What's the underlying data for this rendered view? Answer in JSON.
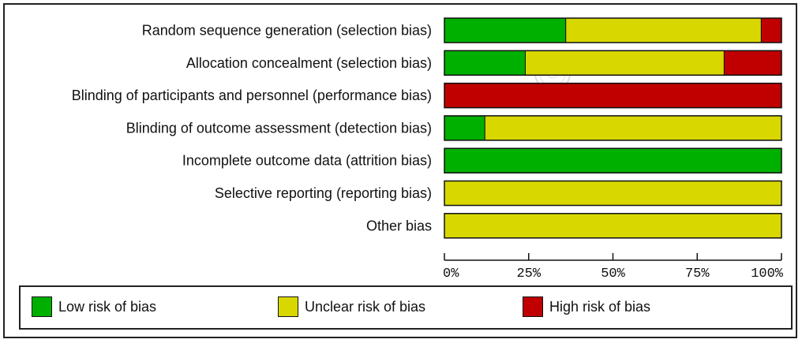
{
  "chart_data": {
    "type": "bar",
    "orientation": "horizontal",
    "stacked": true,
    "categories": [
      "Random sequence generation (selection bias)",
      "Allocation concealment (selection bias)",
      "Blinding of participants and personnel (performance bias)",
      "Blinding of outcome assessment (detection bias)",
      "Incomplete outcome data (attrition bias)",
      "Selective reporting (reporting bias)",
      "Other bias"
    ],
    "series": [
      {
        "name": "Low risk of bias",
        "color": "#00b000",
        "values": [
          36,
          24,
          0,
          12,
          100,
          0,
          0
        ]
      },
      {
        "name": "Unclear risk of bias",
        "color": "#d8d800",
        "values": [
          58,
          59,
          0,
          88,
          0,
          100,
          100
        ]
      },
      {
        "name": "High risk of bias",
        "color": "#c00000",
        "values": [
          6,
          17,
          100,
          0,
          0,
          0,
          0
        ]
      }
    ],
    "xlim": [
      0,
      100
    ],
    "xticks": [
      "0%",
      "25%",
      "50%",
      "75%",
      "100%"
    ],
    "legend_position": "bottom",
    "grid": false
  }
}
